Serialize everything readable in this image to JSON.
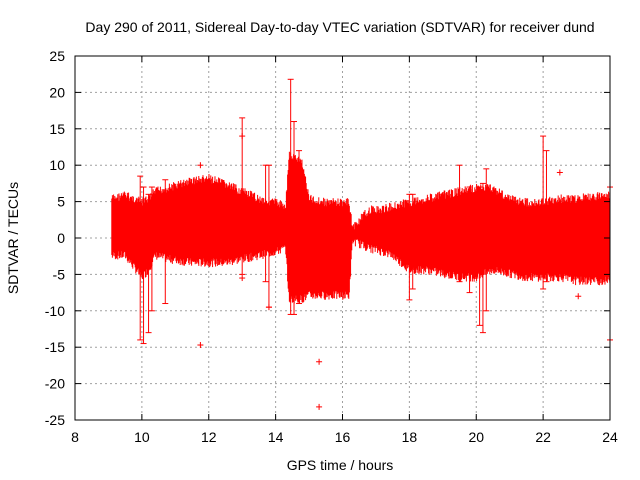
{
  "chart_data": {
    "type": "scatter",
    "title": "Day 290 of 2011, Sidereal Day-to-day VTEC variation (SDTVAR) for receiver dund",
    "xlabel": "GPS time / hours",
    "ylabel": "SDTVAR / TECUs",
    "xlim": [
      8,
      24
    ],
    "ylim": [
      -25,
      25
    ],
    "xticks": [
      8,
      10,
      12,
      14,
      16,
      18,
      20,
      22,
      24
    ],
    "yticks": [
      -25,
      -20,
      -15,
      -10,
      -5,
      0,
      5,
      10,
      15,
      20,
      25
    ],
    "grid": true,
    "marker": "+",
    "series": [
      {
        "name": "SDTVAR",
        "color": "#ff0000",
        "envelope": [
          {
            "x": 9.1,
            "lo": -3,
            "hi": 6
          },
          {
            "x": 9.5,
            "lo": -3,
            "hi": 6.5
          },
          {
            "x": 10.0,
            "lo": -6,
            "hi": 5.5
          },
          {
            "x": 10.2,
            "lo": -5,
            "hi": 6
          },
          {
            "x": 10.4,
            "lo": -3,
            "hi": 7
          },
          {
            "x": 10.8,
            "lo": -3.5,
            "hi": 7.5
          },
          {
            "x": 11.5,
            "lo": -4,
            "hi": 8.5
          },
          {
            "x": 12.0,
            "lo": -4,
            "hi": 8.8
          },
          {
            "x": 12.5,
            "lo": -4,
            "hi": 8
          },
          {
            "x": 13.0,
            "lo": -3.5,
            "hi": 7
          },
          {
            "x": 13.5,
            "lo": -3,
            "hi": 6
          },
          {
            "x": 14.0,
            "lo": -2.5,
            "hi": 5.5
          },
          {
            "x": 14.3,
            "lo": -2,
            "hi": 5
          },
          {
            "x": 14.4,
            "lo": -9,
            "hi": 12
          },
          {
            "x": 14.8,
            "lo": -9,
            "hi": 11
          },
          {
            "x": 15.0,
            "lo": -8.5,
            "hi": 6
          },
          {
            "x": 15.5,
            "lo": -8.5,
            "hi": 5.5
          },
          {
            "x": 16.0,
            "lo": -8.5,
            "hi": 5.5
          },
          {
            "x": 16.2,
            "lo": -8.5,
            "hi": 5.5
          },
          {
            "x": 16.3,
            "lo": -1,
            "hi": 2
          },
          {
            "x": 16.8,
            "lo": -2,
            "hi": 4.5
          },
          {
            "x": 17.2,
            "lo": -2.5,
            "hi": 4.5
          },
          {
            "x": 17.5,
            "lo": -3,
            "hi": 5
          },
          {
            "x": 18.0,
            "lo": -5,
            "hi": 5.5
          },
          {
            "x": 18.5,
            "lo": -5,
            "hi": 6
          },
          {
            "x": 19.0,
            "lo": -5.5,
            "hi": 6.5
          },
          {
            "x": 19.5,
            "lo": -6,
            "hi": 7
          },
          {
            "x": 20.0,
            "lo": -6,
            "hi": 7.5
          },
          {
            "x": 20.5,
            "lo": -5,
            "hi": 7.5
          },
          {
            "x": 21.0,
            "lo": -5.5,
            "hi": 6
          },
          {
            "x": 21.5,
            "lo": -6,
            "hi": 5.5
          },
          {
            "x": 22.0,
            "lo": -6,
            "hi": 5.5
          },
          {
            "x": 22.5,
            "lo": -6,
            "hi": 6
          },
          {
            "x": 23.0,
            "lo": -6.5,
            "hi": 6
          },
          {
            "x": 23.5,
            "lo": -6.5,
            "hi": 6.3
          },
          {
            "x": 24.0,
            "lo": -6.5,
            "hi": 6.5
          }
        ],
        "spikes": [
          {
            "x": 9.95,
            "lo": -14,
            "hi": 8.5
          },
          {
            "x": 10.05,
            "lo": -14.5,
            "hi": 7
          },
          {
            "x": 10.2,
            "lo": -13,
            "hi": 6
          },
          {
            "x": 10.3,
            "lo": -10,
            "hi": 7
          },
          {
            "x": 10.7,
            "lo": -9,
            "hi": 8
          },
          {
            "x": 13.0,
            "lo": -5,
            "hi": 16.5
          },
          {
            "x": 13.7,
            "lo": -6,
            "hi": 10
          },
          {
            "x": 13.8,
            "lo": -9.5,
            "hi": 10
          },
          {
            "x": 14.45,
            "lo": -10.5,
            "hi": 21.8
          },
          {
            "x": 14.55,
            "lo": -10.5,
            "hi": 16
          },
          {
            "x": 14.7,
            "lo": -9,
            "hi": 12
          },
          {
            "x": 18.0,
            "lo": -8.5,
            "hi": 6
          },
          {
            "x": 18.1,
            "lo": -7,
            "hi": 6
          },
          {
            "x": 19.5,
            "lo": -6,
            "hi": 10
          },
          {
            "x": 19.8,
            "lo": -7.5,
            "hi": 7
          },
          {
            "x": 20.1,
            "lo": -12,
            "hi": 7
          },
          {
            "x": 20.2,
            "lo": -13,
            "hi": 7.5
          },
          {
            "x": 20.3,
            "lo": -10,
            "hi": 9.5
          },
          {
            "x": 22.0,
            "lo": -7,
            "hi": 14
          },
          {
            "x": 22.1,
            "lo": -6,
            "hi": 12
          },
          {
            "x": 24.0,
            "lo": -14,
            "hi": 7
          }
        ],
        "outliers": [
          {
            "x": 11.75,
            "y": 10
          },
          {
            "x": 11.75,
            "y": -14.7
          },
          {
            "x": 13.0,
            "y": 14
          },
          {
            "x": 13.0,
            "y": -5.5
          },
          {
            "x": 13.8,
            "y": -9.5
          },
          {
            "x": 15.3,
            "y": -17
          },
          {
            "x": 15.3,
            "y": -23.2
          },
          {
            "x": 22.5,
            "y": 9
          },
          {
            "x": 23.05,
            "y": -8
          }
        ]
      }
    ]
  }
}
